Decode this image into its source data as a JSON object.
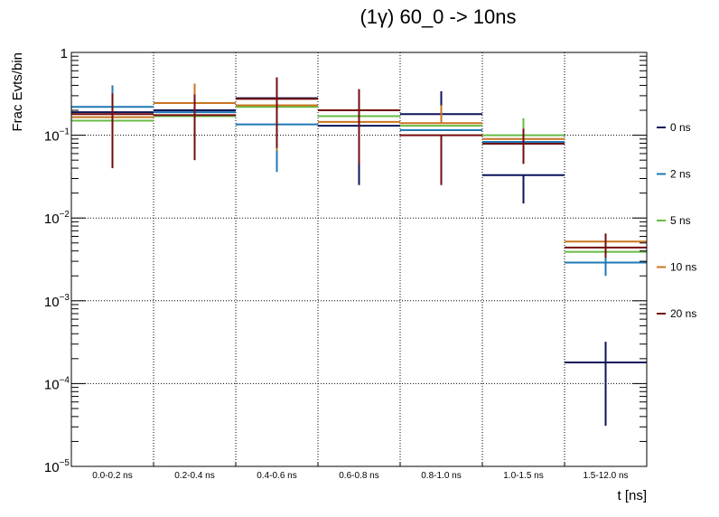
{
  "chart_data": {
    "type": "step-histogram-errorbars",
    "title": "(1γ) 60_0 -> 10ns",
    "xlabel": "t [ns]",
    "ylabel": "Frac Evts/bin",
    "yscale": "log",
    "ylim": [
      1e-05,
      1
    ],
    "grid": true,
    "legend_position": "right",
    "y_ticks": [
      {
        "base": "10",
        "exp": "−5",
        "value": 1e-05
      },
      {
        "base": "10",
        "exp": "−4",
        "value": 0.0001
      },
      {
        "base": "10",
        "exp": "−3",
        "value": 0.001
      },
      {
        "base": "10",
        "exp": "−2",
        "value": 0.01
      },
      {
        "base": "10",
        "exp": "−1",
        "value": 0.1
      },
      {
        "base": "1",
        "exp": "",
        "value": 1
      }
    ],
    "categories": [
      "0.0-0.2 ns",
      "0.2-0.4 ns",
      "0.4-0.6 ns",
      "0.6-0.8 ns",
      "0.8-1.0 ns",
      "1.0-1.5 ns",
      "1.5-12.0 ns"
    ],
    "series": [
      {
        "name": "0 ns",
        "color": "#0b1459",
        "values": [
          0.19,
          0.2,
          0.28,
          0.13,
          0.18,
          0.033,
          0.00018
        ],
        "err_low": [
          0.19,
          0.2,
          0.28,
          0.025,
          0.18,
          0.015,
          3.1e-05
        ],
        "err_high": [
          0.19,
          0.2,
          0.28,
          0.13,
          0.34,
          0.033,
          0.00032
        ]
      },
      {
        "name": "2 ns",
        "color": "#1f78b4",
        "values": [
          0.22,
          0.19,
          0.135,
          0.2,
          0.115,
          0.083,
          0.0029
        ],
        "err_low": [
          0.04,
          0.19,
          0.036,
          0.2,
          0.115,
          0.083,
          0.002
        ],
        "err_high": [
          0.4,
          0.19,
          0.135,
          0.2,
          0.115,
          0.083,
          0.0036
        ]
      },
      {
        "name": "5 ns",
        "color": "#66bb44",
        "values": [
          0.15,
          0.17,
          0.22,
          0.17,
          0.13,
          0.1,
          0.0039
        ],
        "err_low": [
          0.15,
          0.17,
          0.22,
          0.17,
          0.13,
          0.1,
          0.0039
        ],
        "err_high": [
          0.15,
          0.17,
          0.22,
          0.17,
          0.13,
          0.16,
          0.0039
        ]
      },
      {
        "name": "10 ns",
        "color": "#c87421",
        "values": [
          0.165,
          0.245,
          0.23,
          0.145,
          0.14,
          0.09,
          0.0052
        ],
        "err_low": [
          0.165,
          0.245,
          0.065,
          0.05,
          0.14,
          0.09,
          0.0052
        ],
        "err_high": [
          0.165,
          0.42,
          0.23,
          0.145,
          0.23,
          0.09,
          0.0052
        ]
      },
      {
        "name": "20 ns",
        "color": "#720d0d",
        "values": [
          0.18,
          0.175,
          0.275,
          0.2,
          0.1,
          0.079,
          0.0044
        ],
        "err_low": [
          0.04,
          0.05,
          0.07,
          0.045,
          0.025,
          0.045,
          0.0033
        ],
        "err_high": [
          0.32,
          0.31,
          0.5,
          0.36,
          0.1,
          0.12,
          0.0065
        ]
      }
    ]
  }
}
